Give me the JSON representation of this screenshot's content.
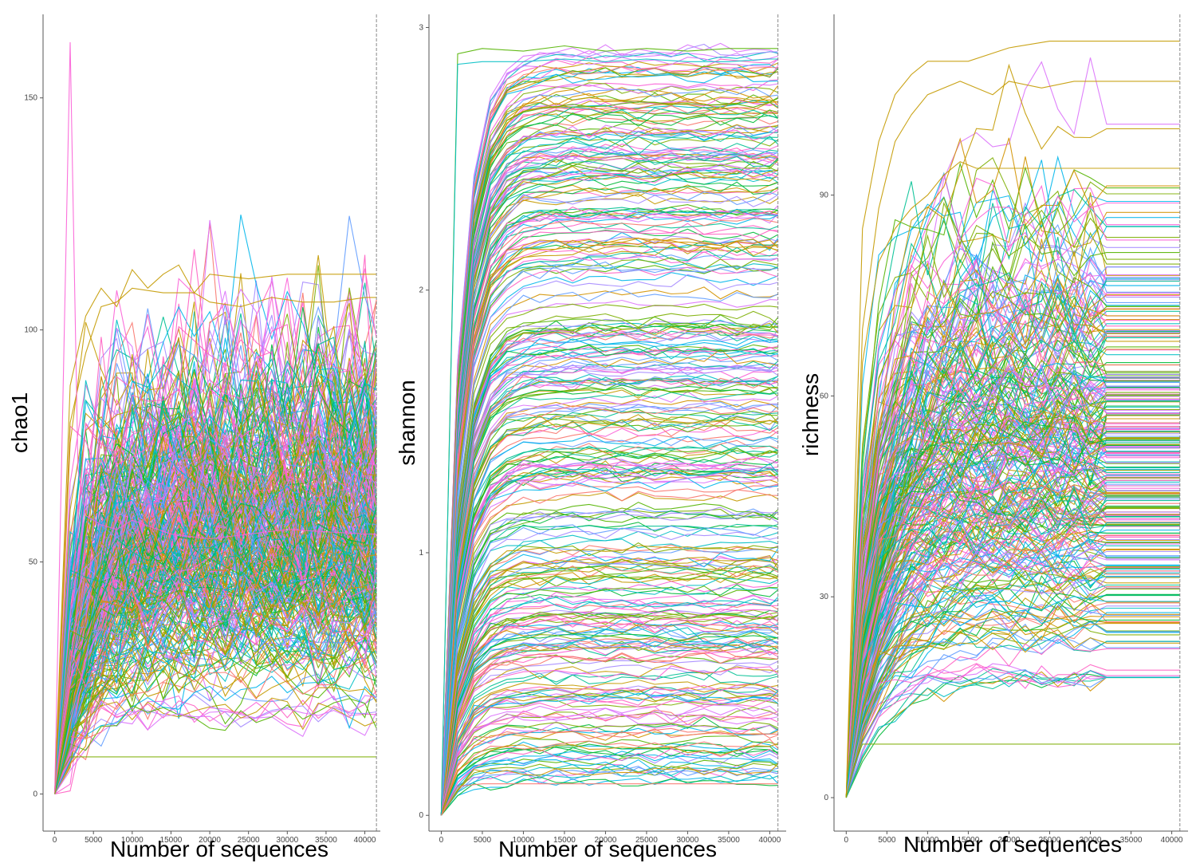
{
  "colors": [
    "#F8766D",
    "#C49A00",
    "#53B400",
    "#00C094",
    "#00B6EB",
    "#A58AFF",
    "#FB61D7",
    "#D39200",
    "#7CAE00",
    "#00BA38",
    "#00BFC4",
    "#619CFF",
    "#DB72FB",
    "#FF61C3"
  ],
  "chart_data": [
    {
      "type": "line",
      "title": "",
      "xlabel": "Number of sequences",
      "ylabel": "chao1",
      "xlim": [
        -1500,
        42000
      ],
      "ylim": [
        -8,
        168
      ],
      "xticks": [
        0,
        5000,
        10000,
        15000,
        20000,
        25000,
        30000,
        35000,
        40000
      ],
      "yticks": [
        0,
        50,
        100,
        150
      ],
      "reference_x": 41500,
      "sample_count_estimate": 350,
      "series_summary": {
        "start": 0,
        "plateau_range": [
          8,
          112
        ],
        "central_value": 57,
        "max_single_peak": 162
      },
      "highlight_series": [
        {
          "color": "#C49A00",
          "x": [
            0,
            2000,
            4000,
            6000,
            8000,
            10000,
            12000,
            14000,
            16000,
            18000,
            20000,
            25000,
            30000,
            35000,
            40000,
            41500
          ],
          "y": [
            0,
            88,
            103,
            109,
            105,
            113,
            109,
            112,
            114,
            108,
            112,
            111,
            112,
            112,
            112,
            112
          ]
        },
        {
          "color": "#C49A00",
          "x": [
            0,
            2000,
            4000,
            6000,
            8000,
            10000,
            14000,
            18000,
            20000,
            24000,
            28000,
            32000,
            36000,
            40000,
            41500
          ],
          "y": [
            0,
            80,
            95,
            105,
            106,
            109,
            108,
            108,
            106,
            105,
            107,
            106,
            106,
            107,
            107
          ]
        },
        {
          "color": "#FB61D7",
          "x": [
            0,
            1000,
            2000,
            3000,
            4000,
            6000,
            8000,
            10000,
            15000,
            20000,
            30000,
            40000,
            41500
          ],
          "y": [
            0,
            80,
            162,
            70,
            60,
            58,
            57,
            59,
            56,
            55,
            57,
            56,
            56
          ]
        },
        {
          "color": "#7CAE00",
          "x": [
            0,
            1000,
            2000,
            5000,
            10000,
            20000,
            30000,
            40000,
            41500
          ],
          "y": [
            0,
            5,
            8,
            8,
            8,
            8,
            8,
            8,
            8
          ]
        }
      ]
    },
    {
      "type": "line",
      "title": "",
      "xlabel": "Number of sequences",
      "ylabel": "shannon",
      "xlim": [
        -1500,
        42000
      ],
      "ylim": [
        -0.06,
        3.05
      ],
      "xticks": [
        0,
        5000,
        10000,
        15000,
        20000,
        25000,
        30000,
        35000,
        40000
      ],
      "yticks": [
        0,
        1,
        2,
        3
      ],
      "reference_x": 41000,
      "sample_count_estimate": 350,
      "series_summary": {
        "start": 0,
        "plateau_range": [
          0.12,
          2.92
        ],
        "central_value": 1.8
      },
      "highlight_series": [
        {
          "color": "#53B400",
          "x": [
            0,
            2000,
            5000,
            10000,
            15000,
            20000,
            25000,
            30000,
            35000,
            40000,
            41000
          ],
          "y": [
            0,
            2.9,
            2.92,
            2.91,
            2.93,
            2.91,
            2.92,
            2.91,
            2.92,
            2.92,
            2.92
          ]
        },
        {
          "color": "#00BFC4",
          "x": [
            0,
            2000,
            5000,
            10000,
            15000,
            20000,
            25000,
            30000,
            35000,
            40000,
            41000
          ],
          "y": [
            0,
            2.86,
            2.87,
            2.87,
            2.88,
            2.87,
            2.88,
            2.87,
            2.87,
            2.88,
            2.88
          ]
        },
        {
          "color": "#F8766D",
          "x": [
            0,
            2000,
            5000,
            10000,
            20000,
            30000,
            40000,
            41000
          ],
          "y": [
            0,
            0.11,
            0.12,
            0.12,
            0.12,
            0.12,
            0.12,
            0.12
          ]
        }
      ]
    },
    {
      "type": "line",
      "title": "",
      "xlabel": "Number of sequences",
      "ylabel": "richness",
      "xlim": [
        -1500,
        42000
      ],
      "ylim": [
        -5,
        117
      ],
      "xticks": [
        0,
        5000,
        10000,
        15000,
        20000,
        25000,
        30000,
        35000,
        40000
      ],
      "yticks": [
        0,
        30,
        60,
        90
      ],
      "reference_x": 41000,
      "sample_count_estimate": 300,
      "series_summary": {
        "start": 0,
        "plateau_range": [
          8,
          113
        ],
        "central_value": 52
      },
      "highlight_series": [
        {
          "color": "#C49A00",
          "x": [
            0,
            2000,
            4000,
            6000,
            8000,
            10000,
            15000,
            20000,
            25000,
            30000,
            35000,
            40000,
            41000
          ],
          "y": [
            0,
            85,
            98,
            105,
            108,
            110,
            110,
            112,
            113,
            113,
            113,
            113,
            113
          ]
        },
        {
          "color": "#C49A00",
          "x": [
            0,
            2000,
            4000,
            6000,
            8000,
            10000,
            14000,
            18000,
            20000,
            24000,
            28000,
            32000,
            36000,
            40000,
            41000
          ],
          "y": [
            0,
            70,
            88,
            98,
            102,
            105,
            107,
            105,
            107,
            106,
            107,
            107,
            107,
            107,
            107
          ]
        },
        {
          "color": "#C49A00",
          "x": [
            0,
            2000,
            4000,
            6000,
            8000,
            10000,
            12000,
            14000,
            16000,
            20000,
            30000,
            40000,
            41000
          ],
          "y": [
            0,
            65,
            80,
            85,
            88,
            90,
            93,
            95,
            94,
            94,
            94,
            94,
            94
          ]
        },
        {
          "color": "#7CAE00",
          "x": [
            0,
            1000,
            2000,
            5000,
            10000,
            20000,
            30000,
            40000,
            41000
          ],
          "y": [
            0,
            5,
            8,
            8,
            8,
            8,
            8,
            8,
            8
          ]
        }
      ]
    }
  ]
}
